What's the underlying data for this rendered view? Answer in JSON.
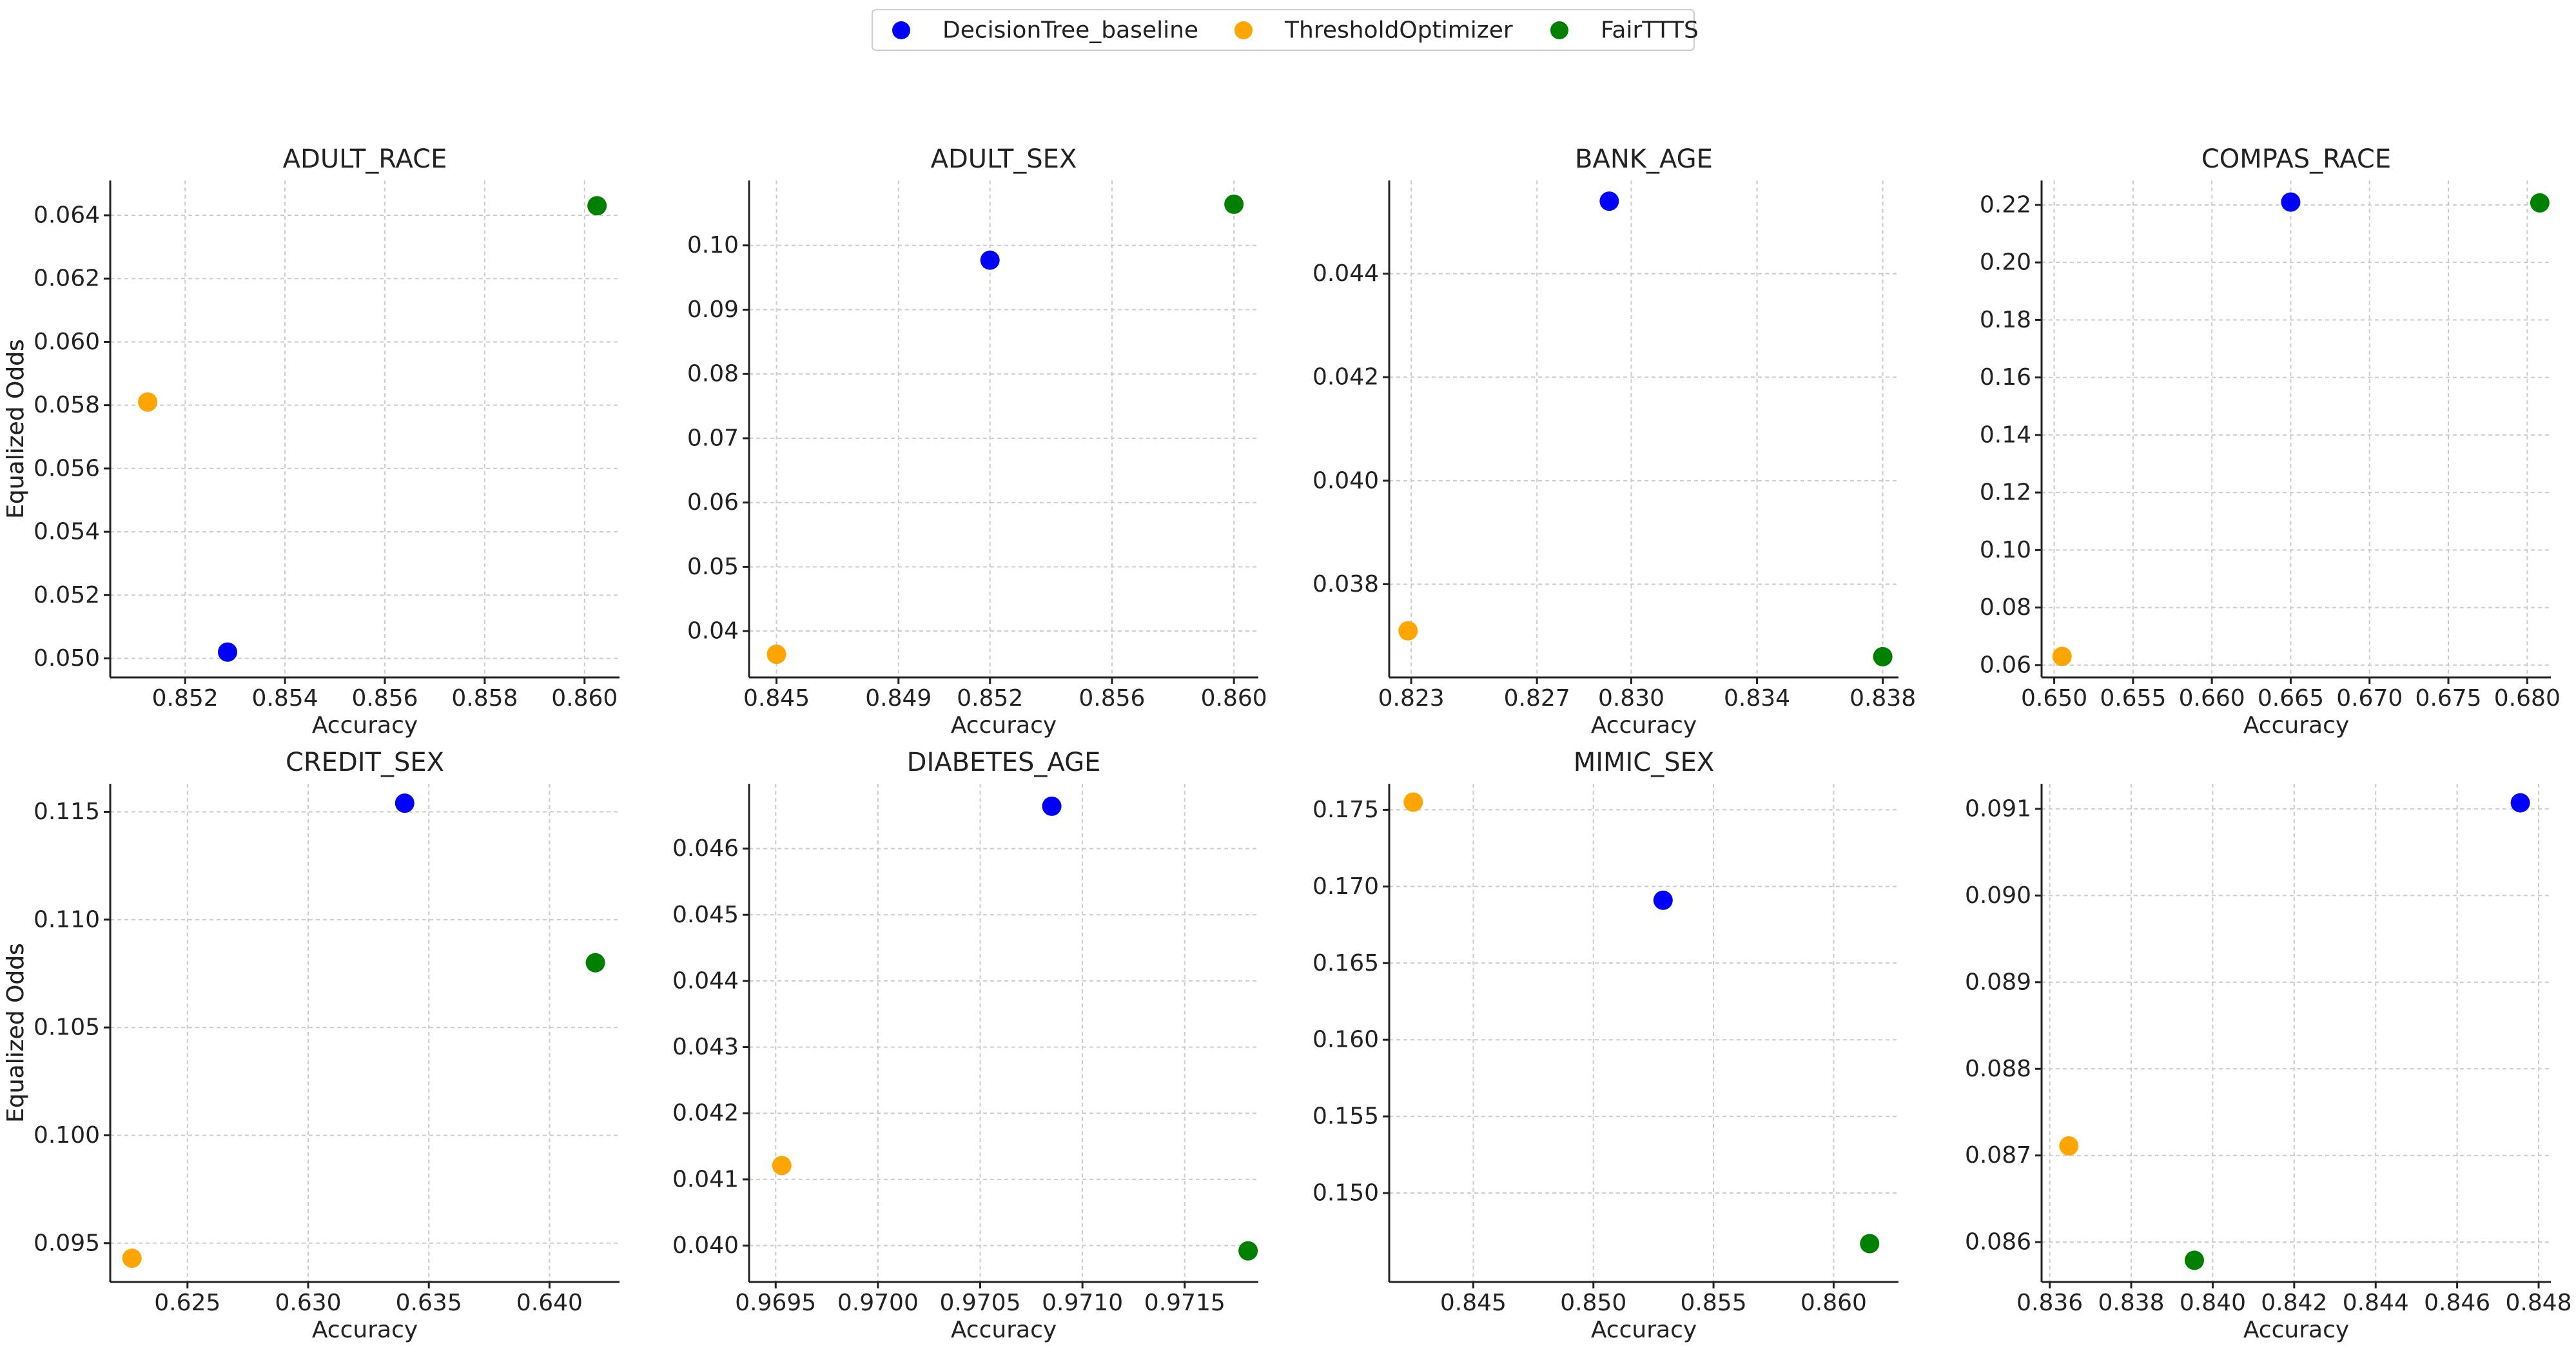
{
  "chart_data": {
    "type": "scatter",
    "legend": {
      "position": "top-center",
      "entries": [
        {
          "name": "DecisionTree_baseline",
          "color": "#0000ff"
        },
        {
          "name": "ThresholdOptimizer",
          "color": "#ffa500"
        },
        {
          "name": "FairTTTS",
          "color": "#008000"
        }
      ]
    },
    "panels": [
      {
        "title": "ADULT_RACE",
        "xlabel": "Accuracy",
        "ylabel": "Equalized Odds",
        "xlim": [
          0.8505,
          0.8607
        ],
        "ylim": [
          0.0494,
          0.0651
        ],
        "xticks": [
          {
            "v": 0.852,
            "label": "0.852"
          },
          {
            "v": 0.854,
            "label": "0.854"
          },
          {
            "v": 0.856,
            "label": "0.856"
          },
          {
            "v": 0.858,
            "label": "0.858"
          },
          {
            "v": 0.86,
            "label": "0.860"
          }
        ],
        "yticks": [
          {
            "v": 0.05,
            "label": "0.050"
          },
          {
            "v": 0.052,
            "label": "0.052"
          },
          {
            "v": 0.054,
            "label": "0.054"
          },
          {
            "v": 0.056,
            "label": "0.056"
          },
          {
            "v": 0.058,
            "label": "0.058"
          },
          {
            "v": 0.06,
            "label": "0.060"
          },
          {
            "v": 0.062,
            "label": "0.062"
          },
          {
            "v": 0.064,
            "label": "0.064"
          }
        ],
        "points": [
          {
            "series": "DecisionTree_baseline",
            "x": 0.85285,
            "y": 0.0502
          },
          {
            "series": "ThresholdOptimizer",
            "x": 0.85125,
            "y": 0.0581
          },
          {
            "series": "FairTTTS",
            "x": 0.86025,
            "y": 0.0643
          }
        ]
      },
      {
        "title": "ADULT_SEX",
        "xlabel": "Accuracy",
        "ylabel": "Equalized Odds",
        "xlim": [
          0.8441,
          0.8608
        ],
        "ylim": [
          0.0328,
          0.1101
        ],
        "xticks": [
          {
            "v": 0.845,
            "label": "0.845"
          },
          {
            "v": 0.849,
            "label": "0.849"
          },
          {
            "v": 0.852,
            "label": "0.852"
          },
          {
            "v": 0.856,
            "label": "0.856"
          },
          {
            "v": 0.86,
            "label": "0.860"
          }
        ],
        "yticks": [
          {
            "v": 0.04,
            "label": "0.04"
          },
          {
            "v": 0.05,
            "label": "0.05"
          },
          {
            "v": 0.06,
            "label": "0.06"
          },
          {
            "v": 0.07,
            "label": "0.07"
          },
          {
            "v": 0.08,
            "label": "0.08"
          },
          {
            "v": 0.09,
            "label": "0.09"
          },
          {
            "v": 0.1,
            "label": "0.10"
          }
        ],
        "points": [
          {
            "series": "DecisionTree_baseline",
            "x": 0.852,
            "y": 0.0977
          },
          {
            "series": "ThresholdOptimizer",
            "x": 0.845,
            "y": 0.0364
          },
          {
            "series": "FairTTTS",
            "x": 0.86,
            "y": 0.1064
          }
        ]
      },
      {
        "title": "BANK_AGE",
        "xlabel": "Accuracy",
        "ylabel": "Equalized Odds",
        "xlim": [
          0.8223,
          0.8385
        ],
        "ylim": [
          0.0362,
          0.0458
        ],
        "xticks": [
          {
            "v": 0.823,
            "label": "0.823"
          },
          {
            "v": 0.827,
            "label": "0.827"
          },
          {
            "v": 0.83,
            "label": "0.830"
          },
          {
            "v": 0.834,
            "label": "0.834"
          },
          {
            "v": 0.838,
            "label": "0.838"
          }
        ],
        "yticks": [
          {
            "v": 0.038,
            "label": "0.038"
          },
          {
            "v": 0.04,
            "label": "0.040"
          },
          {
            "v": 0.042,
            "label": "0.042"
          },
          {
            "v": 0.044,
            "label": "0.044"
          }
        ],
        "points": [
          {
            "series": "DecisionTree_baseline",
            "x": 0.8293,
            "y": 0.0454
          },
          {
            "series": "ThresholdOptimizer",
            "x": 0.8229,
            "y": 0.0371
          },
          {
            "series": "FairTTTS",
            "x": 0.838,
            "y": 0.0366
          }
        ]
      },
      {
        "title": "COMPAS_RACE",
        "xlabel": "Accuracy",
        "ylabel": "Equalized Odds",
        "xlim": [
          0.6492,
          0.6815
        ],
        "ylim": [
          0.0557,
          0.2285
        ],
        "xticks": [
          {
            "v": 0.65,
            "label": "0.650"
          },
          {
            "v": 0.655,
            "label": "0.655"
          },
          {
            "v": 0.66,
            "label": "0.660"
          },
          {
            "v": 0.665,
            "label": "0.665"
          },
          {
            "v": 0.67,
            "label": "0.670"
          },
          {
            "v": 0.675,
            "label": "0.675"
          },
          {
            "v": 0.68,
            "label": "0.680"
          }
        ],
        "yticks": [
          {
            "v": 0.06,
            "label": "0.06"
          },
          {
            "v": 0.08,
            "label": "0.08"
          },
          {
            "v": 0.1,
            "label": "0.10"
          },
          {
            "v": 0.12,
            "label": "0.12"
          },
          {
            "v": 0.14,
            "label": "0.14"
          },
          {
            "v": 0.16,
            "label": "0.16"
          },
          {
            "v": 0.18,
            "label": "0.18"
          },
          {
            "v": 0.2,
            "label": "0.20"
          },
          {
            "v": 0.22,
            "label": "0.22"
          }
        ],
        "points": [
          {
            "series": "DecisionTree_baseline",
            "x": 0.665,
            "y": 0.221
          },
          {
            "series": "ThresholdOptimizer",
            "x": 0.6505,
            "y": 0.063
          },
          {
            "series": "FairTTTS",
            "x": 0.6808,
            "y": 0.2207
          }
        ]
      },
      {
        "title": "CREDIT_SEX",
        "xlabel": "Accuracy",
        "ylabel": "Equalized Odds",
        "xlim": [
          0.6218,
          0.6429
        ],
        "ylim": [
          0.0932,
          0.1163
        ],
        "xticks": [
          {
            "v": 0.625,
            "label": "0.625"
          },
          {
            "v": 0.63,
            "label": "0.630"
          },
          {
            "v": 0.635,
            "label": "0.635"
          },
          {
            "v": 0.64,
            "label": "0.640"
          }
        ],
        "yticks": [
          {
            "v": 0.095,
            "label": "0.095"
          },
          {
            "v": 0.1,
            "label": "0.100"
          },
          {
            "v": 0.105,
            "label": "0.105"
          },
          {
            "v": 0.11,
            "label": "0.110"
          },
          {
            "v": 0.115,
            "label": "0.115"
          }
        ],
        "points": [
          {
            "series": "DecisionTree_baseline",
            "x": 0.634,
            "y": 0.1154
          },
          {
            "series": "ThresholdOptimizer",
            "x": 0.6227,
            "y": 0.0943
          },
          {
            "series": "FairTTTS",
            "x": 0.6419,
            "y": 0.108
          }
        ]
      },
      {
        "title": "DIABETES_AGE",
        "xlabel": "Accuracy",
        "ylabel": "Equalized Odds",
        "xlim": [
          0.96937,
          0.97186
        ],
        "ylim": [
          0.03945,
          0.04698
        ],
        "xticks": [
          {
            "v": 0.9695,
            "label": "0.9695"
          },
          {
            "v": 0.97,
            "label": "0.9700"
          },
          {
            "v": 0.9705,
            "label": "0.9705"
          },
          {
            "v": 0.971,
            "label": "0.9710"
          },
          {
            "v": 0.9715,
            "label": "0.9715"
          }
        ],
        "yticks": [
          {
            "v": 0.04,
            "label": "0.040"
          },
          {
            "v": 0.041,
            "label": "0.041"
          },
          {
            "v": 0.042,
            "label": "0.042"
          },
          {
            "v": 0.043,
            "label": "0.043"
          },
          {
            "v": 0.044,
            "label": "0.044"
          },
          {
            "v": 0.045,
            "label": "0.045"
          },
          {
            "v": 0.046,
            "label": "0.046"
          }
        ],
        "points": [
          {
            "series": "DecisionTree_baseline",
            "x": 0.97085,
            "y": 0.04664
          },
          {
            "series": "ThresholdOptimizer",
            "x": 0.96953,
            "y": 0.04121
          },
          {
            "series": "FairTTTS",
            "x": 0.97181,
            "y": 0.03992
          }
        ]
      },
      {
        "title": "MIMIC_SEX",
        "xlabel": "Accuracy",
        "ylabel": "Equalized Odds",
        "xlim": [
          0.8415,
          0.8627
        ],
        "ylim": [
          0.1442,
          0.1767
        ],
        "xticks": [
          {
            "v": 0.845,
            "label": "0.845"
          },
          {
            "v": 0.85,
            "label": "0.850"
          },
          {
            "v": 0.855,
            "label": "0.855"
          },
          {
            "v": 0.86,
            "label": "0.860"
          }
        ],
        "yticks": [
          {
            "v": 0.15,
            "label": "0.150"
          },
          {
            "v": 0.155,
            "label": "0.155"
          },
          {
            "v": 0.16,
            "label": "0.160"
          },
          {
            "v": 0.165,
            "label": "0.165"
          },
          {
            "v": 0.17,
            "label": "0.170"
          },
          {
            "v": 0.175,
            "label": "0.175"
          }
        ],
        "points": [
          {
            "series": "DecisionTree_baseline",
            "x": 0.8529,
            "y": 0.1691
          },
          {
            "series": "ThresholdOptimizer",
            "x": 0.8425,
            "y": 0.1755
          },
          {
            "series": "FairTTTS",
            "x": 0.8615,
            "y": 0.1467
          }
        ]
      },
      {
        "title": "",
        "xlabel": "Accuracy",
        "ylabel": "Equalized Odds",
        "xlim": [
          0.8358,
          0.8483
        ],
        "ylim": [
          0.08554,
          0.09129
        ],
        "xticks": [
          {
            "v": 0.836,
            "label": "0.836"
          },
          {
            "v": 0.838,
            "label": "0.838"
          },
          {
            "v": 0.84,
            "label": "0.840"
          },
          {
            "v": 0.842,
            "label": "0.842"
          },
          {
            "v": 0.844,
            "label": "0.844"
          },
          {
            "v": 0.846,
            "label": "0.846"
          },
          {
            "v": 0.848,
            "label": "0.848"
          }
        ],
        "yticks": [
          {
            "v": 0.086,
            "label": "0.086"
          },
          {
            "v": 0.087,
            "label": "0.087"
          },
          {
            "v": 0.088,
            "label": "0.088"
          },
          {
            "v": 0.089,
            "label": "0.089"
          },
          {
            "v": 0.09,
            "label": "0.090"
          },
          {
            "v": 0.091,
            "label": "0.091"
          }
        ],
        "points": [
          {
            "series": "DecisionTree_baseline",
            "x": 0.84755,
            "y": 0.09107
          },
          {
            "series": "ThresholdOptimizer",
            "x": 0.83647,
            "y": 0.08711
          },
          {
            "series": "FairTTTS",
            "x": 0.83955,
            "y": 0.08579
          }
        ]
      }
    ]
  }
}
